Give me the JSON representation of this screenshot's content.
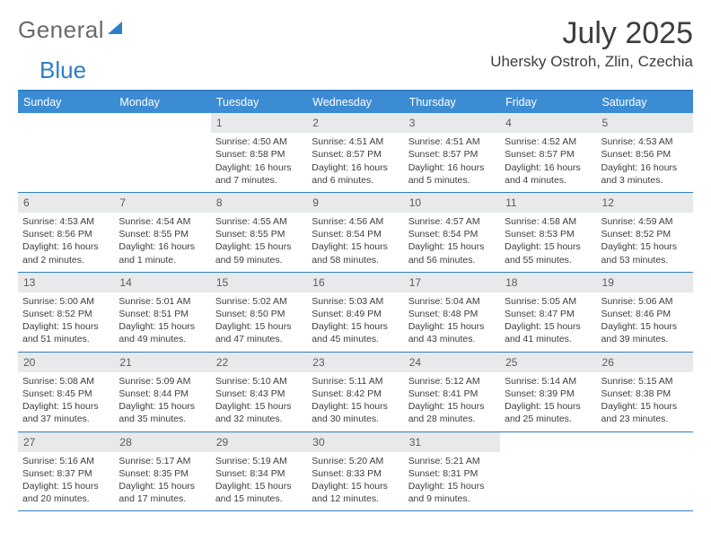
{
  "logo": {
    "part1": "General",
    "part2": "Blue"
  },
  "title": "July 2025",
  "location": "Uhersky Ostroh, Zlin, Czechia",
  "colors": {
    "header_accent": "#2f7fc7",
    "dow_bg": "#3c8cd4",
    "daynum_bg": "#e7e9eb",
    "text": "#3d3d3d"
  },
  "daysOfWeek": [
    "Sunday",
    "Monday",
    "Tuesday",
    "Wednesday",
    "Thursday",
    "Friday",
    "Saturday"
  ],
  "weeks": [
    [
      {
        "empty": true
      },
      {
        "empty": true
      },
      {
        "num": "1",
        "sunrise": "Sunrise: 4:50 AM",
        "sunset": "Sunset: 8:58 PM",
        "daylight": "Daylight: 16 hours and 7 minutes."
      },
      {
        "num": "2",
        "sunrise": "Sunrise: 4:51 AM",
        "sunset": "Sunset: 8:57 PM",
        "daylight": "Daylight: 16 hours and 6 minutes."
      },
      {
        "num": "3",
        "sunrise": "Sunrise: 4:51 AM",
        "sunset": "Sunset: 8:57 PM",
        "daylight": "Daylight: 16 hours and 5 minutes."
      },
      {
        "num": "4",
        "sunrise": "Sunrise: 4:52 AM",
        "sunset": "Sunset: 8:57 PM",
        "daylight": "Daylight: 16 hours and 4 minutes."
      },
      {
        "num": "5",
        "sunrise": "Sunrise: 4:53 AM",
        "sunset": "Sunset: 8:56 PM",
        "daylight": "Daylight: 16 hours and 3 minutes."
      }
    ],
    [
      {
        "num": "6",
        "sunrise": "Sunrise: 4:53 AM",
        "sunset": "Sunset: 8:56 PM",
        "daylight": "Daylight: 16 hours and 2 minutes."
      },
      {
        "num": "7",
        "sunrise": "Sunrise: 4:54 AM",
        "sunset": "Sunset: 8:55 PM",
        "daylight": "Daylight: 16 hours and 1 minute."
      },
      {
        "num": "8",
        "sunrise": "Sunrise: 4:55 AM",
        "sunset": "Sunset: 8:55 PM",
        "daylight": "Daylight: 15 hours and 59 minutes."
      },
      {
        "num": "9",
        "sunrise": "Sunrise: 4:56 AM",
        "sunset": "Sunset: 8:54 PM",
        "daylight": "Daylight: 15 hours and 58 minutes."
      },
      {
        "num": "10",
        "sunrise": "Sunrise: 4:57 AM",
        "sunset": "Sunset: 8:54 PM",
        "daylight": "Daylight: 15 hours and 56 minutes."
      },
      {
        "num": "11",
        "sunrise": "Sunrise: 4:58 AM",
        "sunset": "Sunset: 8:53 PM",
        "daylight": "Daylight: 15 hours and 55 minutes."
      },
      {
        "num": "12",
        "sunrise": "Sunrise: 4:59 AM",
        "sunset": "Sunset: 8:52 PM",
        "daylight": "Daylight: 15 hours and 53 minutes."
      }
    ],
    [
      {
        "num": "13",
        "sunrise": "Sunrise: 5:00 AM",
        "sunset": "Sunset: 8:52 PM",
        "daylight": "Daylight: 15 hours and 51 minutes."
      },
      {
        "num": "14",
        "sunrise": "Sunrise: 5:01 AM",
        "sunset": "Sunset: 8:51 PM",
        "daylight": "Daylight: 15 hours and 49 minutes."
      },
      {
        "num": "15",
        "sunrise": "Sunrise: 5:02 AM",
        "sunset": "Sunset: 8:50 PM",
        "daylight": "Daylight: 15 hours and 47 minutes."
      },
      {
        "num": "16",
        "sunrise": "Sunrise: 5:03 AM",
        "sunset": "Sunset: 8:49 PM",
        "daylight": "Daylight: 15 hours and 45 minutes."
      },
      {
        "num": "17",
        "sunrise": "Sunrise: 5:04 AM",
        "sunset": "Sunset: 8:48 PM",
        "daylight": "Daylight: 15 hours and 43 minutes."
      },
      {
        "num": "18",
        "sunrise": "Sunrise: 5:05 AM",
        "sunset": "Sunset: 8:47 PM",
        "daylight": "Daylight: 15 hours and 41 minutes."
      },
      {
        "num": "19",
        "sunrise": "Sunrise: 5:06 AM",
        "sunset": "Sunset: 8:46 PM",
        "daylight": "Daylight: 15 hours and 39 minutes."
      }
    ],
    [
      {
        "num": "20",
        "sunrise": "Sunrise: 5:08 AM",
        "sunset": "Sunset: 8:45 PM",
        "daylight": "Daylight: 15 hours and 37 minutes."
      },
      {
        "num": "21",
        "sunrise": "Sunrise: 5:09 AM",
        "sunset": "Sunset: 8:44 PM",
        "daylight": "Daylight: 15 hours and 35 minutes."
      },
      {
        "num": "22",
        "sunrise": "Sunrise: 5:10 AM",
        "sunset": "Sunset: 8:43 PM",
        "daylight": "Daylight: 15 hours and 32 minutes."
      },
      {
        "num": "23",
        "sunrise": "Sunrise: 5:11 AM",
        "sunset": "Sunset: 8:42 PM",
        "daylight": "Daylight: 15 hours and 30 minutes."
      },
      {
        "num": "24",
        "sunrise": "Sunrise: 5:12 AM",
        "sunset": "Sunset: 8:41 PM",
        "daylight": "Daylight: 15 hours and 28 minutes."
      },
      {
        "num": "25",
        "sunrise": "Sunrise: 5:14 AM",
        "sunset": "Sunset: 8:39 PM",
        "daylight": "Daylight: 15 hours and 25 minutes."
      },
      {
        "num": "26",
        "sunrise": "Sunrise: 5:15 AM",
        "sunset": "Sunset: 8:38 PM",
        "daylight": "Daylight: 15 hours and 23 minutes."
      }
    ],
    [
      {
        "num": "27",
        "sunrise": "Sunrise: 5:16 AM",
        "sunset": "Sunset: 8:37 PM",
        "daylight": "Daylight: 15 hours and 20 minutes."
      },
      {
        "num": "28",
        "sunrise": "Sunrise: 5:17 AM",
        "sunset": "Sunset: 8:35 PM",
        "daylight": "Daylight: 15 hours and 17 minutes."
      },
      {
        "num": "29",
        "sunrise": "Sunrise: 5:19 AM",
        "sunset": "Sunset: 8:34 PM",
        "daylight": "Daylight: 15 hours and 15 minutes."
      },
      {
        "num": "30",
        "sunrise": "Sunrise: 5:20 AM",
        "sunset": "Sunset: 8:33 PM",
        "daylight": "Daylight: 15 hours and 12 minutes."
      },
      {
        "num": "31",
        "sunrise": "Sunrise: 5:21 AM",
        "sunset": "Sunset: 8:31 PM",
        "daylight": "Daylight: 15 hours and 9 minutes."
      },
      {
        "empty": true
      },
      {
        "empty": true
      }
    ]
  ]
}
